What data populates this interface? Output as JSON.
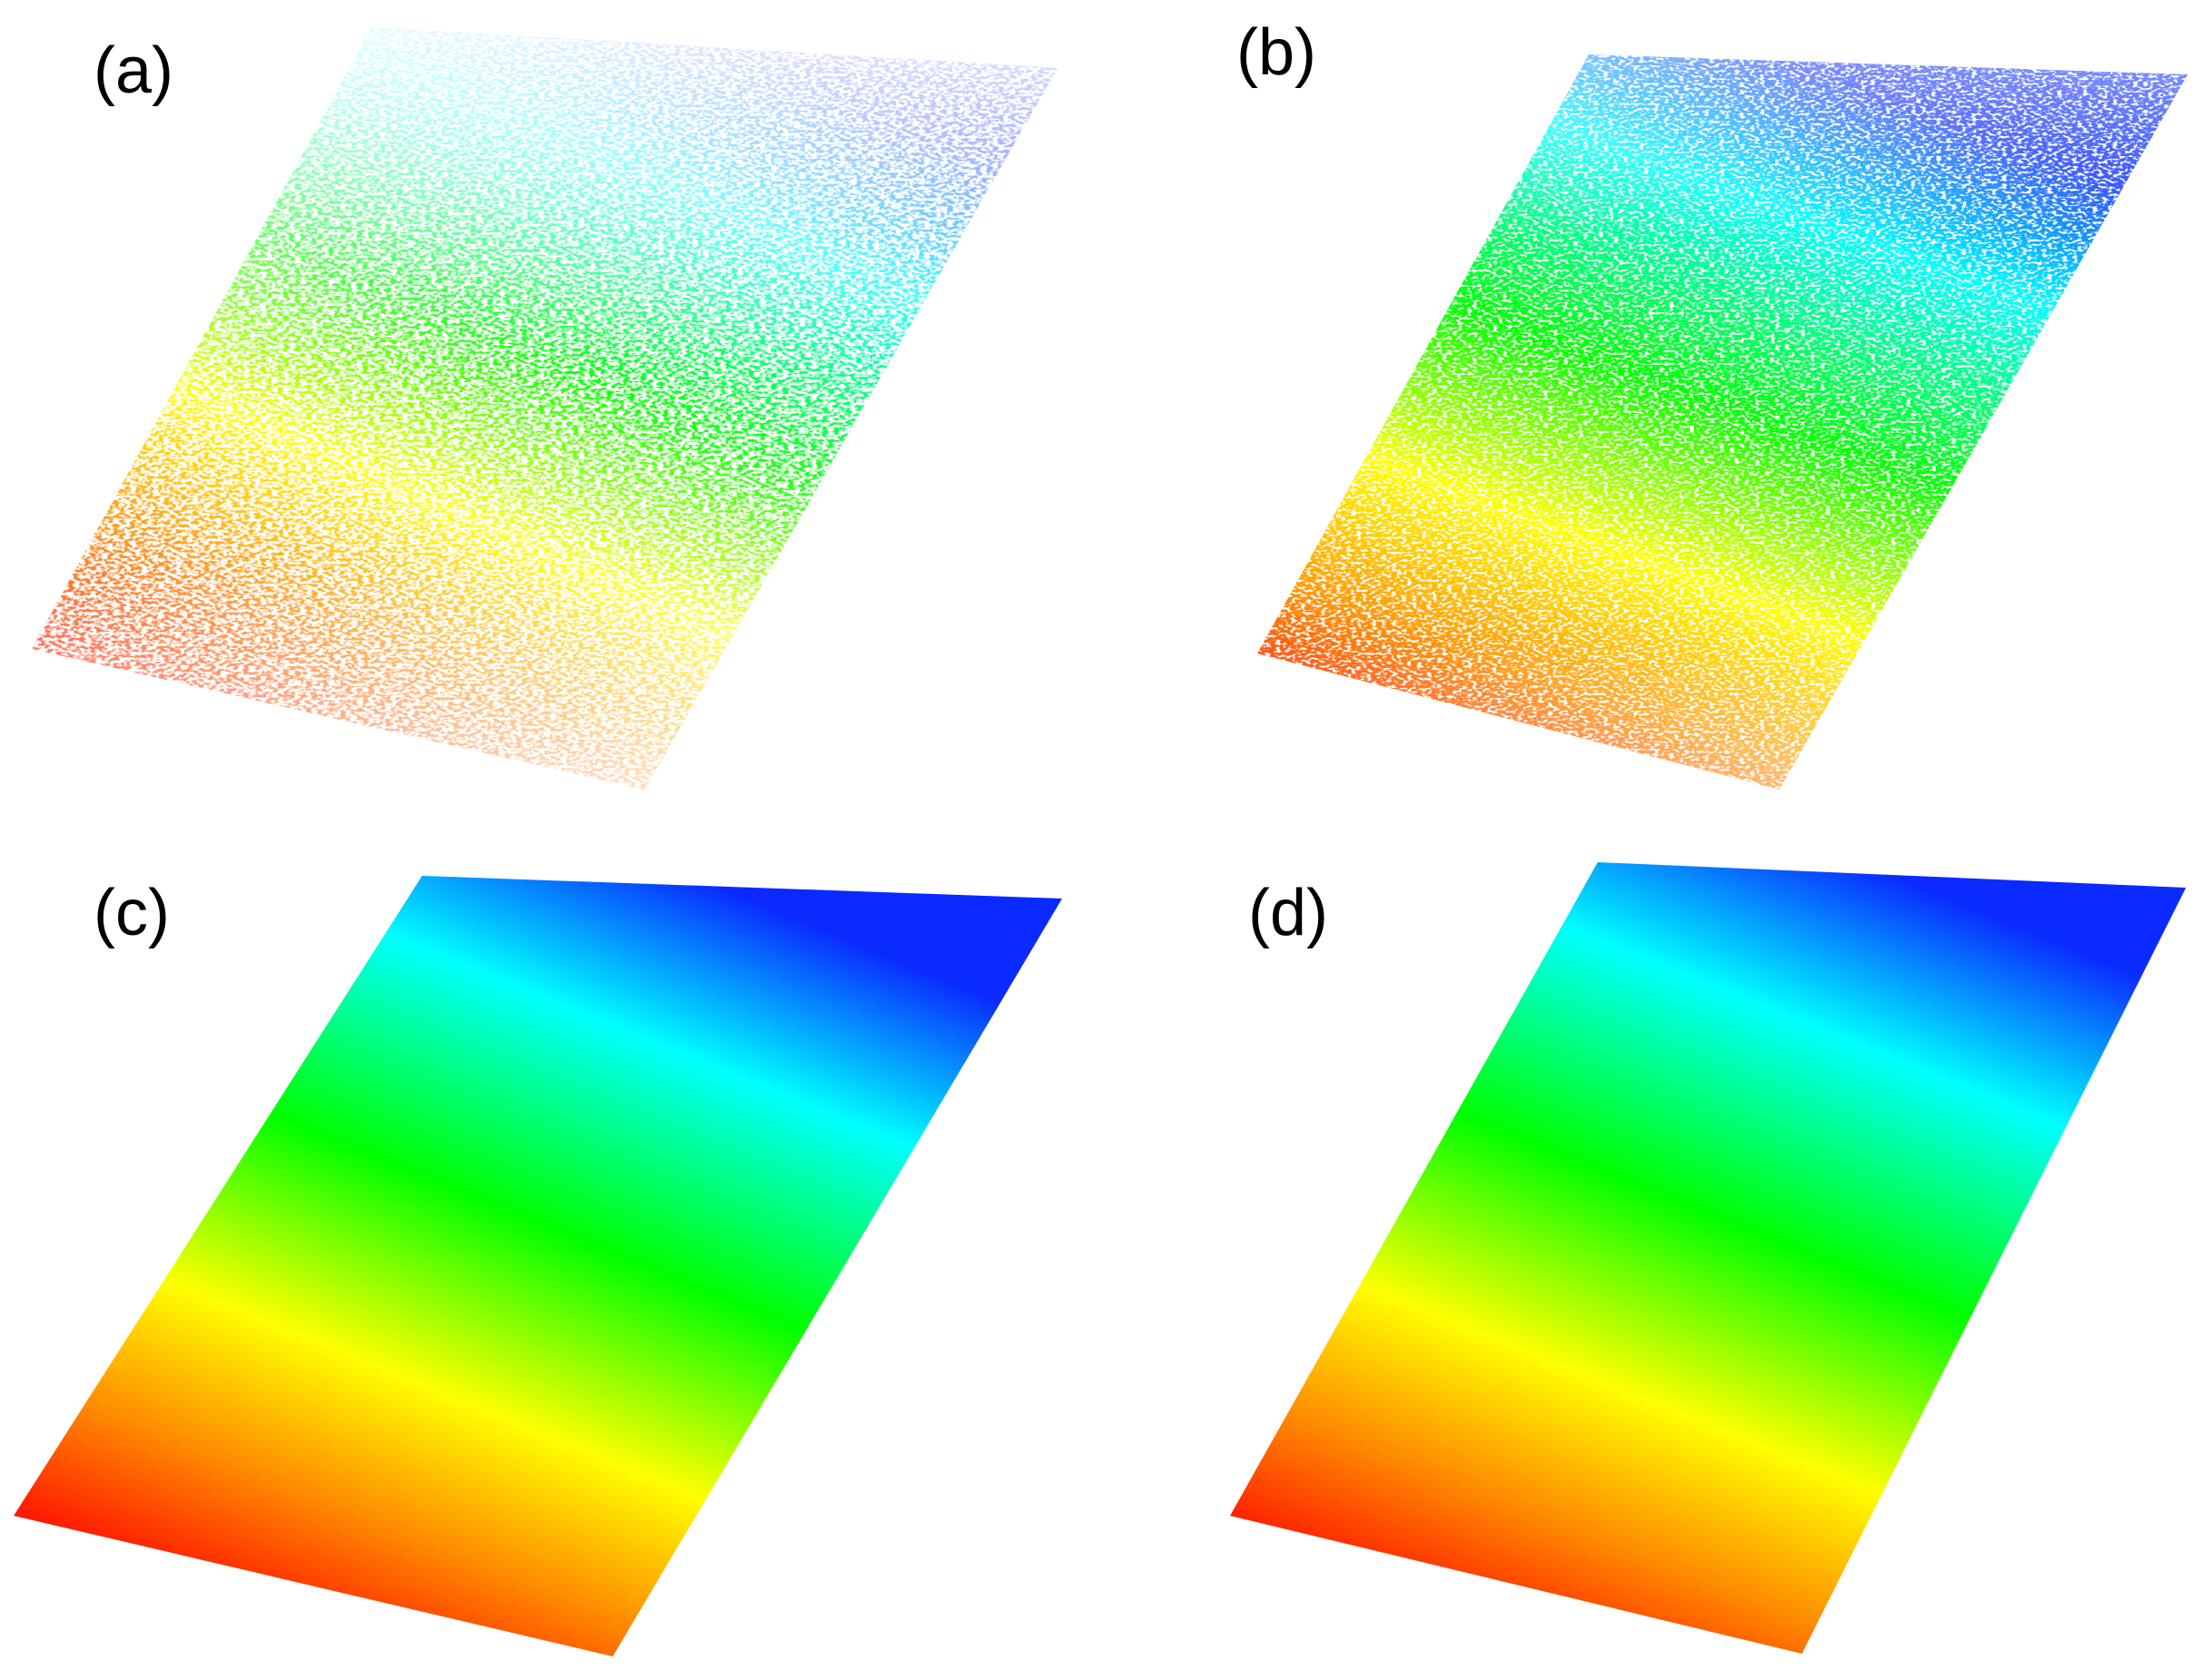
{
  "figure": {
    "panels": [
      {
        "id": "a",
        "label": "(a)",
        "density": "sparse"
      },
      {
        "id": "b",
        "label": "(b)",
        "density": "medium"
      },
      {
        "id": "c",
        "label": "(c)",
        "density": "dense"
      },
      {
        "id": "d",
        "label": "(d)",
        "density": "dense"
      }
    ],
    "colormap": [
      "#ff0000",
      "#ff8c00",
      "#ffff00",
      "#00ff00",
      "#00ffff",
      "#0000ff"
    ],
    "background": "#ffffff"
  }
}
